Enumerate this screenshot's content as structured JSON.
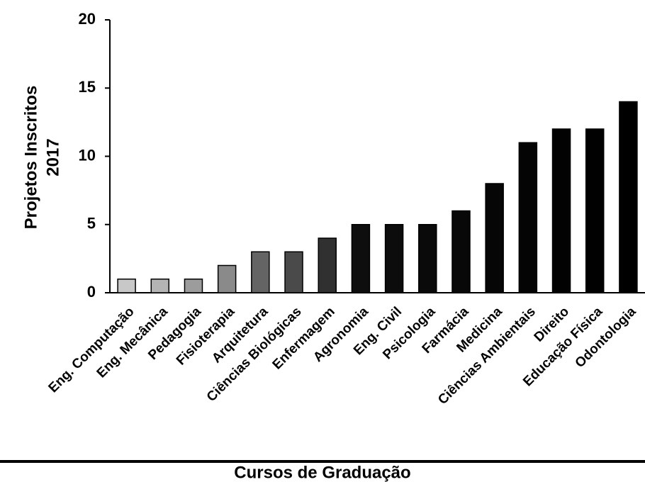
{
  "chart_data": {
    "type": "bar",
    "ylabel": [
      "Projetos Inscritos",
      "2017"
    ],
    "xlabel": "Cursos de Graduação",
    "categories": [
      "Eng. Computação",
      "Eng. Mecânica",
      "Pedagogia",
      "Fisioterapia",
      "Arquitetura",
      "Ciências Biológicas",
      "Enfermagem",
      "Agronomia",
      "Eng. Civil",
      "Psicologia",
      "Farmácia",
      "Medicina",
      "Ciências Ambientais",
      "Direito",
      "Educação Física",
      "Odontologia"
    ],
    "values": [
      1,
      1,
      1,
      2,
      3,
      3,
      4,
      5,
      5,
      5,
      6,
      8,
      11,
      12,
      12,
      14
    ],
    "colors": [
      "#c8c8c8",
      "#b4b4b4",
      "#9c9c9c",
      "#8a8a8a",
      "#646464",
      "#4a4a4a",
      "#303030",
      "#0e0e0e",
      "#0c0c0c",
      "#0a0a0a",
      "#080808",
      "#060606",
      "#040404",
      "#020202",
      "#010101",
      "#000000"
    ],
    "ylim": [
      0,
      20
    ],
    "yticks": [
      0,
      5,
      10,
      15,
      20
    ]
  }
}
